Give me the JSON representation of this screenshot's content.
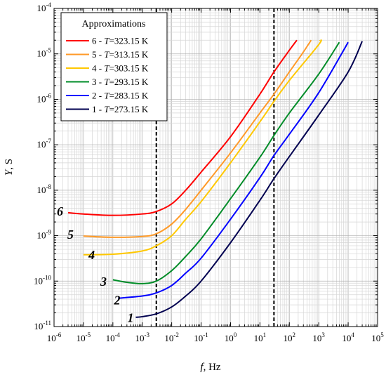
{
  "chart_data": {
    "type": "line",
    "title": "",
    "xlabel_var": "f",
    "xlabel_unit": ", Hz",
    "ylabel_var": "Y",
    "ylabel_unit": ", S",
    "xscale": "log",
    "yscale": "log",
    "xlim": [
      1e-06,
      100000.0
    ],
    "ylim": [
      1e-11,
      0.0001
    ],
    "grid": true,
    "x_ticks": [
      {
        "base": "10",
        "exp": "-6"
      },
      {
        "base": "10",
        "exp": "-5"
      },
      {
        "base": "10",
        "exp": "-4"
      },
      {
        "base": "10",
        "exp": "-3"
      },
      {
        "base": "10",
        "exp": "-2"
      },
      {
        "base": "10",
        "exp": "-1"
      },
      {
        "base": "10",
        "exp": "0"
      },
      {
        "base": "10",
        "exp": "1"
      },
      {
        "base": "10",
        "exp": "2"
      },
      {
        "base": "10",
        "exp": "3"
      },
      {
        "base": "10",
        "exp": "4"
      },
      {
        "base": "10",
        "exp": "5"
      }
    ],
    "y_ticks": [
      {
        "base": "10",
        "exp": "-11"
      },
      {
        "base": "10",
        "exp": "-10"
      },
      {
        "base": "10",
        "exp": "-9"
      },
      {
        "base": "10",
        "exp": "-8"
      },
      {
        "base": "10",
        "exp": "-7"
      },
      {
        "base": "10",
        "exp": "-6"
      },
      {
        "base": "10",
        "exp": "-5"
      },
      {
        "base": "10",
        "exp": "-4"
      }
    ],
    "vertical_lines": [
      0.003,
      30
    ],
    "legend": {
      "title": "Approximations",
      "placement": "top-left",
      "entries": [
        {
          "prefix": "6 - ",
          "var": "T",
          "rest": "=323.15 K",
          "color": "#ff0000"
        },
        {
          "prefix": "5 - ",
          "var": "T",
          "rest": "=313.15 K",
          "color": "#ff9a28"
        },
        {
          "prefix": "4 - ",
          "var": "T",
          "rest": "=303.15 K",
          "color": "#ffc800"
        },
        {
          "prefix": "3 - ",
          "var": "T",
          "rest": "=293.15 K",
          "color": "#008c28"
        },
        {
          "prefix": "2 - ",
          "var": "T",
          "rest": "=283.15 K",
          "color": "#0000ff"
        },
        {
          "prefix": "1 - ",
          "var": "T",
          "rest": "=273.15 K",
          "color": "#000050"
        }
      ]
    },
    "series": [
      {
        "label": "6",
        "color": "#ff0000",
        "points": [
          [
            3e-06,
            3.2e-09
          ],
          [
            1e-05,
            3e-09
          ],
          [
            0.0001,
            2.8e-09
          ],
          [
            0.001,
            3e-09
          ],
          [
            0.003,
            3.4e-09
          ],
          [
            0.01,
            5e-09
          ],
          [
            0.03,
            1e-08
          ],
          [
            0.1,
            2.5e-08
          ],
          [
            1,
            1.5e-07
          ],
          [
            10,
            1.3e-06
          ],
          [
            30,
            4e-06
          ],
          [
            100,
            1.2e-05
          ],
          [
            180,
            2e-05
          ]
        ]
      },
      {
        "label": "5",
        "color": "#ff9a28",
        "points": [
          [
            1e-05,
            9.8e-10
          ],
          [
            0.0001,
            9.2e-10
          ],
          [
            0.001,
            9.6e-10
          ],
          [
            0.003,
            1.1e-09
          ],
          [
            0.01,
            1.8e-09
          ],
          [
            0.03,
            3.8e-09
          ],
          [
            0.1,
            1e-08
          ],
          [
            1,
            6.6e-08
          ],
          [
            10,
            5e-07
          ],
          [
            30,
            1.3e-06
          ],
          [
            100,
            4e-06
          ],
          [
            300,
            1.1e-05
          ],
          [
            550,
            2e-05
          ]
        ]
      },
      {
        "label": "4",
        "color": "#ffc800",
        "points": [
          [
            1e-05,
            3.8e-10
          ],
          [
            0.0001,
            3.9e-10
          ],
          [
            0.001,
            4.6e-10
          ],
          [
            0.003,
            6e-10
          ],
          [
            0.01,
            1e-09
          ],
          [
            0.03,
            2.3e-09
          ],
          [
            0.1,
            5.6e-09
          ],
          [
            1,
            4e-08
          ],
          [
            10,
            3.2e-07
          ],
          [
            30,
            9e-07
          ],
          [
            100,
            2.6e-06
          ],
          [
            1000.0,
            1.6e-05
          ],
          [
            1100.0,
            2e-05
          ]
        ]
      },
      {
        "label": "3",
        "color": "#008c28",
        "points": [
          [
            0.0001,
            1.07e-10
          ],
          [
            0.0003,
            9.4e-11
          ],
          [
            0.001,
            8.8e-11
          ],
          [
            0.003,
            1e-10
          ],
          [
            0.01,
            1.7e-10
          ],
          [
            0.03,
            3.5e-10
          ],
          [
            0.1,
            8.5e-10
          ],
          [
            1,
            6.5e-09
          ],
          [
            10,
            5.3e-08
          ],
          [
            30,
            1.6e-07
          ],
          [
            100,
            5e-07
          ],
          [
            1000.0,
            3.6e-06
          ],
          [
            5000.0,
            1.8e-05
          ]
        ]
      },
      {
        "label": "2",
        "color": "#0000ff",
        "points": [
          [
            0.00015,
            4.2e-11
          ],
          [
            0.001,
            4.7e-11
          ],
          [
            0.003,
            5.5e-11
          ],
          [
            0.01,
            8e-11
          ],
          [
            0.03,
            1.5e-10
          ],
          [
            0.1,
            3.2e-10
          ],
          [
            1,
            2.3e-09
          ],
          [
            10,
            1.9e-08
          ],
          [
            30,
            5.8e-08
          ],
          [
            100,
            1.7e-07
          ],
          [
            1000.0,
            1.4e-06
          ],
          [
            10000.0,
            1.8e-05
          ]
        ]
      },
      {
        "label": "1",
        "color": "#000050",
        "points": [
          [
            0.0006,
            1.6e-11
          ],
          [
            0.001,
            1.65e-11
          ],
          [
            0.003,
            1.9e-11
          ],
          [
            0.01,
            2.7e-11
          ],
          [
            0.03,
            4.7e-11
          ],
          [
            0.1,
            1e-10
          ],
          [
            1,
            7e-10
          ],
          [
            10,
            6e-09
          ],
          [
            30,
            1.8e-08
          ],
          [
            100,
            5.5e-08
          ],
          [
            1000.0,
            4.5e-07
          ],
          [
            10000.0,
            4e-06
          ],
          [
            30000.0,
            1.9e-05
          ]
        ]
      }
    ],
    "curve_labels": [
      {
        "text": "6",
        "x": 1.6e-06,
        "y": 3.4e-09
      },
      {
        "text": "5",
        "x": 3.6e-06,
        "y": 1.05e-09
      },
      {
        "text": "4",
        "x": 1.9e-05,
        "y": 3.8e-10
      },
      {
        "text": "3",
        "x": 4.8e-05,
        "y": 9.8e-11
      },
      {
        "text": "2",
        "x": 0.00014,
        "y": 3.8e-11
      },
      {
        "text": "1",
        "x": 0.0004,
        "y": 1.55e-11
      }
    ]
  }
}
